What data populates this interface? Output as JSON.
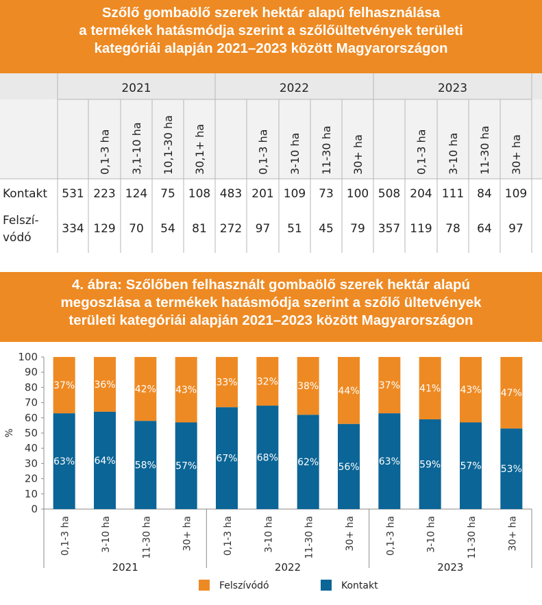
{
  "table": {
    "title_lines": [
      "Szőlő gombaölő szerek hektár alapú felhasználása",
      "a termékek hatásmódja szerint a szőlőültetvények területi",
      "kategóriái alapján 2021–2023 között Magyarországon"
    ],
    "groups": [
      {
        "year": "2021",
        "cols": [
          "0,1-3 ha",
          "3,1-10 ha",
          "10,1-30 ha",
          "30,1+ ha"
        ],
        "kontakt": [
          "531",
          "223",
          "124",
          "75",
          "108"
        ],
        "felszivodo": [
          "334",
          "129",
          "70",
          "54",
          "81"
        ]
      },
      {
        "year": "2022",
        "cols": [
          "0,1-3 ha",
          "3-10 ha",
          "11-30 ha",
          "30+ ha"
        ],
        "kontakt": [
          "483",
          "201",
          "109",
          "73",
          "100"
        ],
        "felszivodo": [
          "272",
          "97",
          "51",
          "45",
          "79"
        ]
      },
      {
        "year": "2023",
        "cols": [
          "0,1-3 ha",
          "3-10 ha",
          "11-30 ha",
          "30+ ha"
        ],
        "kontakt": [
          "508",
          "204",
          "111",
          "84",
          "109"
        ],
        "felszivodo": [
          "357",
          "119",
          "78",
          "64",
          "97"
        ]
      }
    ],
    "row_labels": {
      "kontakt": "Kontakt",
      "felszivodo_line1": "Felszí-",
      "felszivodo_line2": "vódó"
    }
  },
  "chart_data": {
    "type": "bar",
    "stacked": true,
    "title_lines": [
      "4. ábra: Szőlőben felhasznált gombaölő szerek hektár alapú",
      "megoszlása a termékek hatásmódja szerint a szőlő ültetvények",
      "területi kategóriái alapján 2021–2023 között Magyarországon"
    ],
    "ylabel": "%",
    "ylim": [
      0,
      100
    ],
    "yticks": [
      0,
      10,
      20,
      30,
      40,
      50,
      60,
      70,
      80,
      90,
      100
    ],
    "groups": [
      "2021",
      "2022",
      "2023"
    ],
    "categories": [
      "0,1-3 ha",
      "3-10 ha",
      "11-30 ha",
      "30+ ha",
      "0,1-3 ha",
      "3-10 ha",
      "11-30 ha",
      "30+ ha",
      "0,1-3 ha",
      "3-10 ha",
      "11-30 ha",
      "30+ ha"
    ],
    "series": [
      {
        "name": "Kontakt",
        "color": "#0b6596",
        "values": [
          63,
          64,
          58,
          57,
          67,
          68,
          62,
          56,
          63,
          59,
          57,
          53
        ]
      },
      {
        "name": "Felszívódó",
        "color": "#ee8a23",
        "values": [
          37,
          36,
          42,
          43,
          33,
          32,
          38,
          44,
          37,
          41,
          43,
          47
        ]
      }
    ],
    "legend": [
      "Felszívódó",
      "Kontakt"
    ],
    "legend_position": "bottom",
    "grid": false
  }
}
